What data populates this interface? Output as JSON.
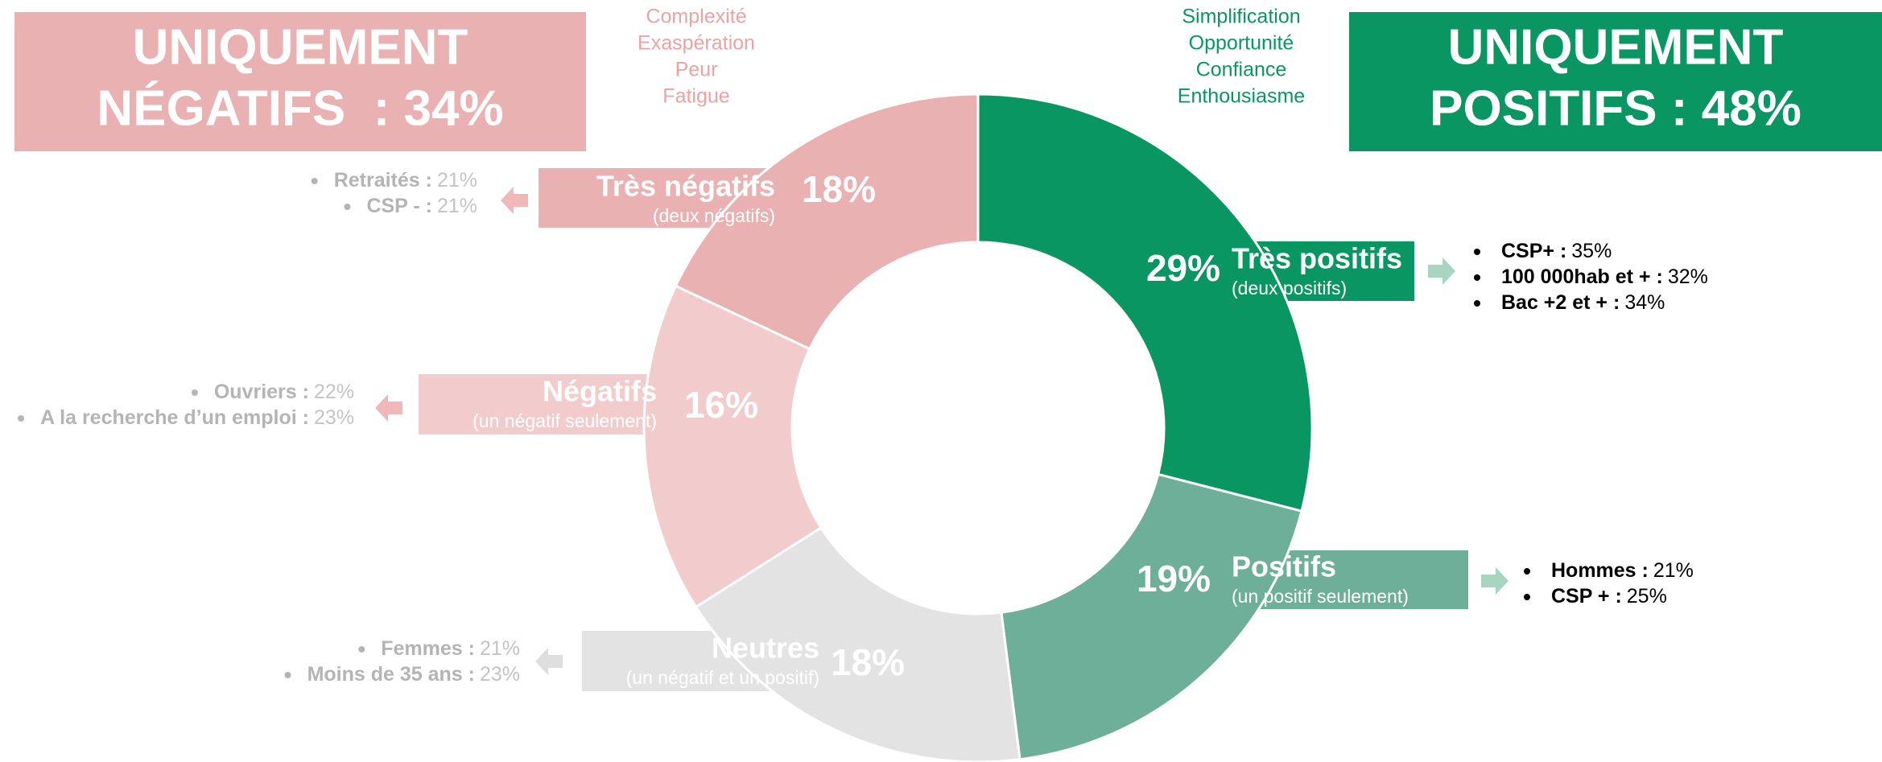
{
  "chart_data": {
    "type": "donut",
    "categories": [
      "Très positifs",
      "Positifs",
      "Neutres",
      "Négatifs",
      "Très négatifs"
    ],
    "subtitles": [
      "(deux positifs)",
      "(un positif seulement)",
      "(un négatif et un positif)",
      "(un négatif seulement)",
      "(deux négatifs)"
    ],
    "values": [
      29,
      19,
      18,
      16,
      18
    ],
    "value_labels": [
      "29%",
      "19%",
      "18%",
      "16%",
      "18%"
    ],
    "colors": [
      "#0a9663",
      "#6daf98",
      "#e3e3e3",
      "#f2cccc",
      "#e9b1b1"
    ],
    "annotations": [
      [
        {
          "label": "CSP+ :",
          "value": "35%"
        },
        {
          "label": "100 000hab et + :",
          "value": "32%"
        },
        {
          "label": "Bac +2 et + :",
          "value": "34%"
        }
      ],
      [
        {
          "label": "Hommes :",
          "value": "21%"
        },
        {
          "label": "CSP + :",
          "value": "25%"
        }
      ],
      [
        {
          "label": "Femmes :",
          "value": "21%"
        },
        {
          "label": "Moins de 35 ans :",
          "value": "23%"
        }
      ],
      [
        {
          "label": "Ouvriers :",
          "value": "22%"
        },
        {
          "label": "A la recherche d’un emploi :",
          "value": "23%"
        }
      ],
      [
        {
          "label": "Retraités :",
          "value": "21%"
        },
        {
          "label": "CSP - :",
          "value": "21%"
        }
      ]
    ]
  },
  "negative_summary": {
    "lines": [
      "UNIQUEMENT",
      "NÉGATIFS  : 34%"
    ],
    "words": [
      "Complexité",
      "Exaspération",
      "Peur",
      "Fatigue"
    ]
  },
  "positive_summary": {
    "lines": [
      "UNIQUEMENT",
      "POSITIFS : 48%"
    ],
    "words": [
      "Simplification",
      "Opportunité",
      "Confiance",
      "Enthousiasme"
    ]
  }
}
